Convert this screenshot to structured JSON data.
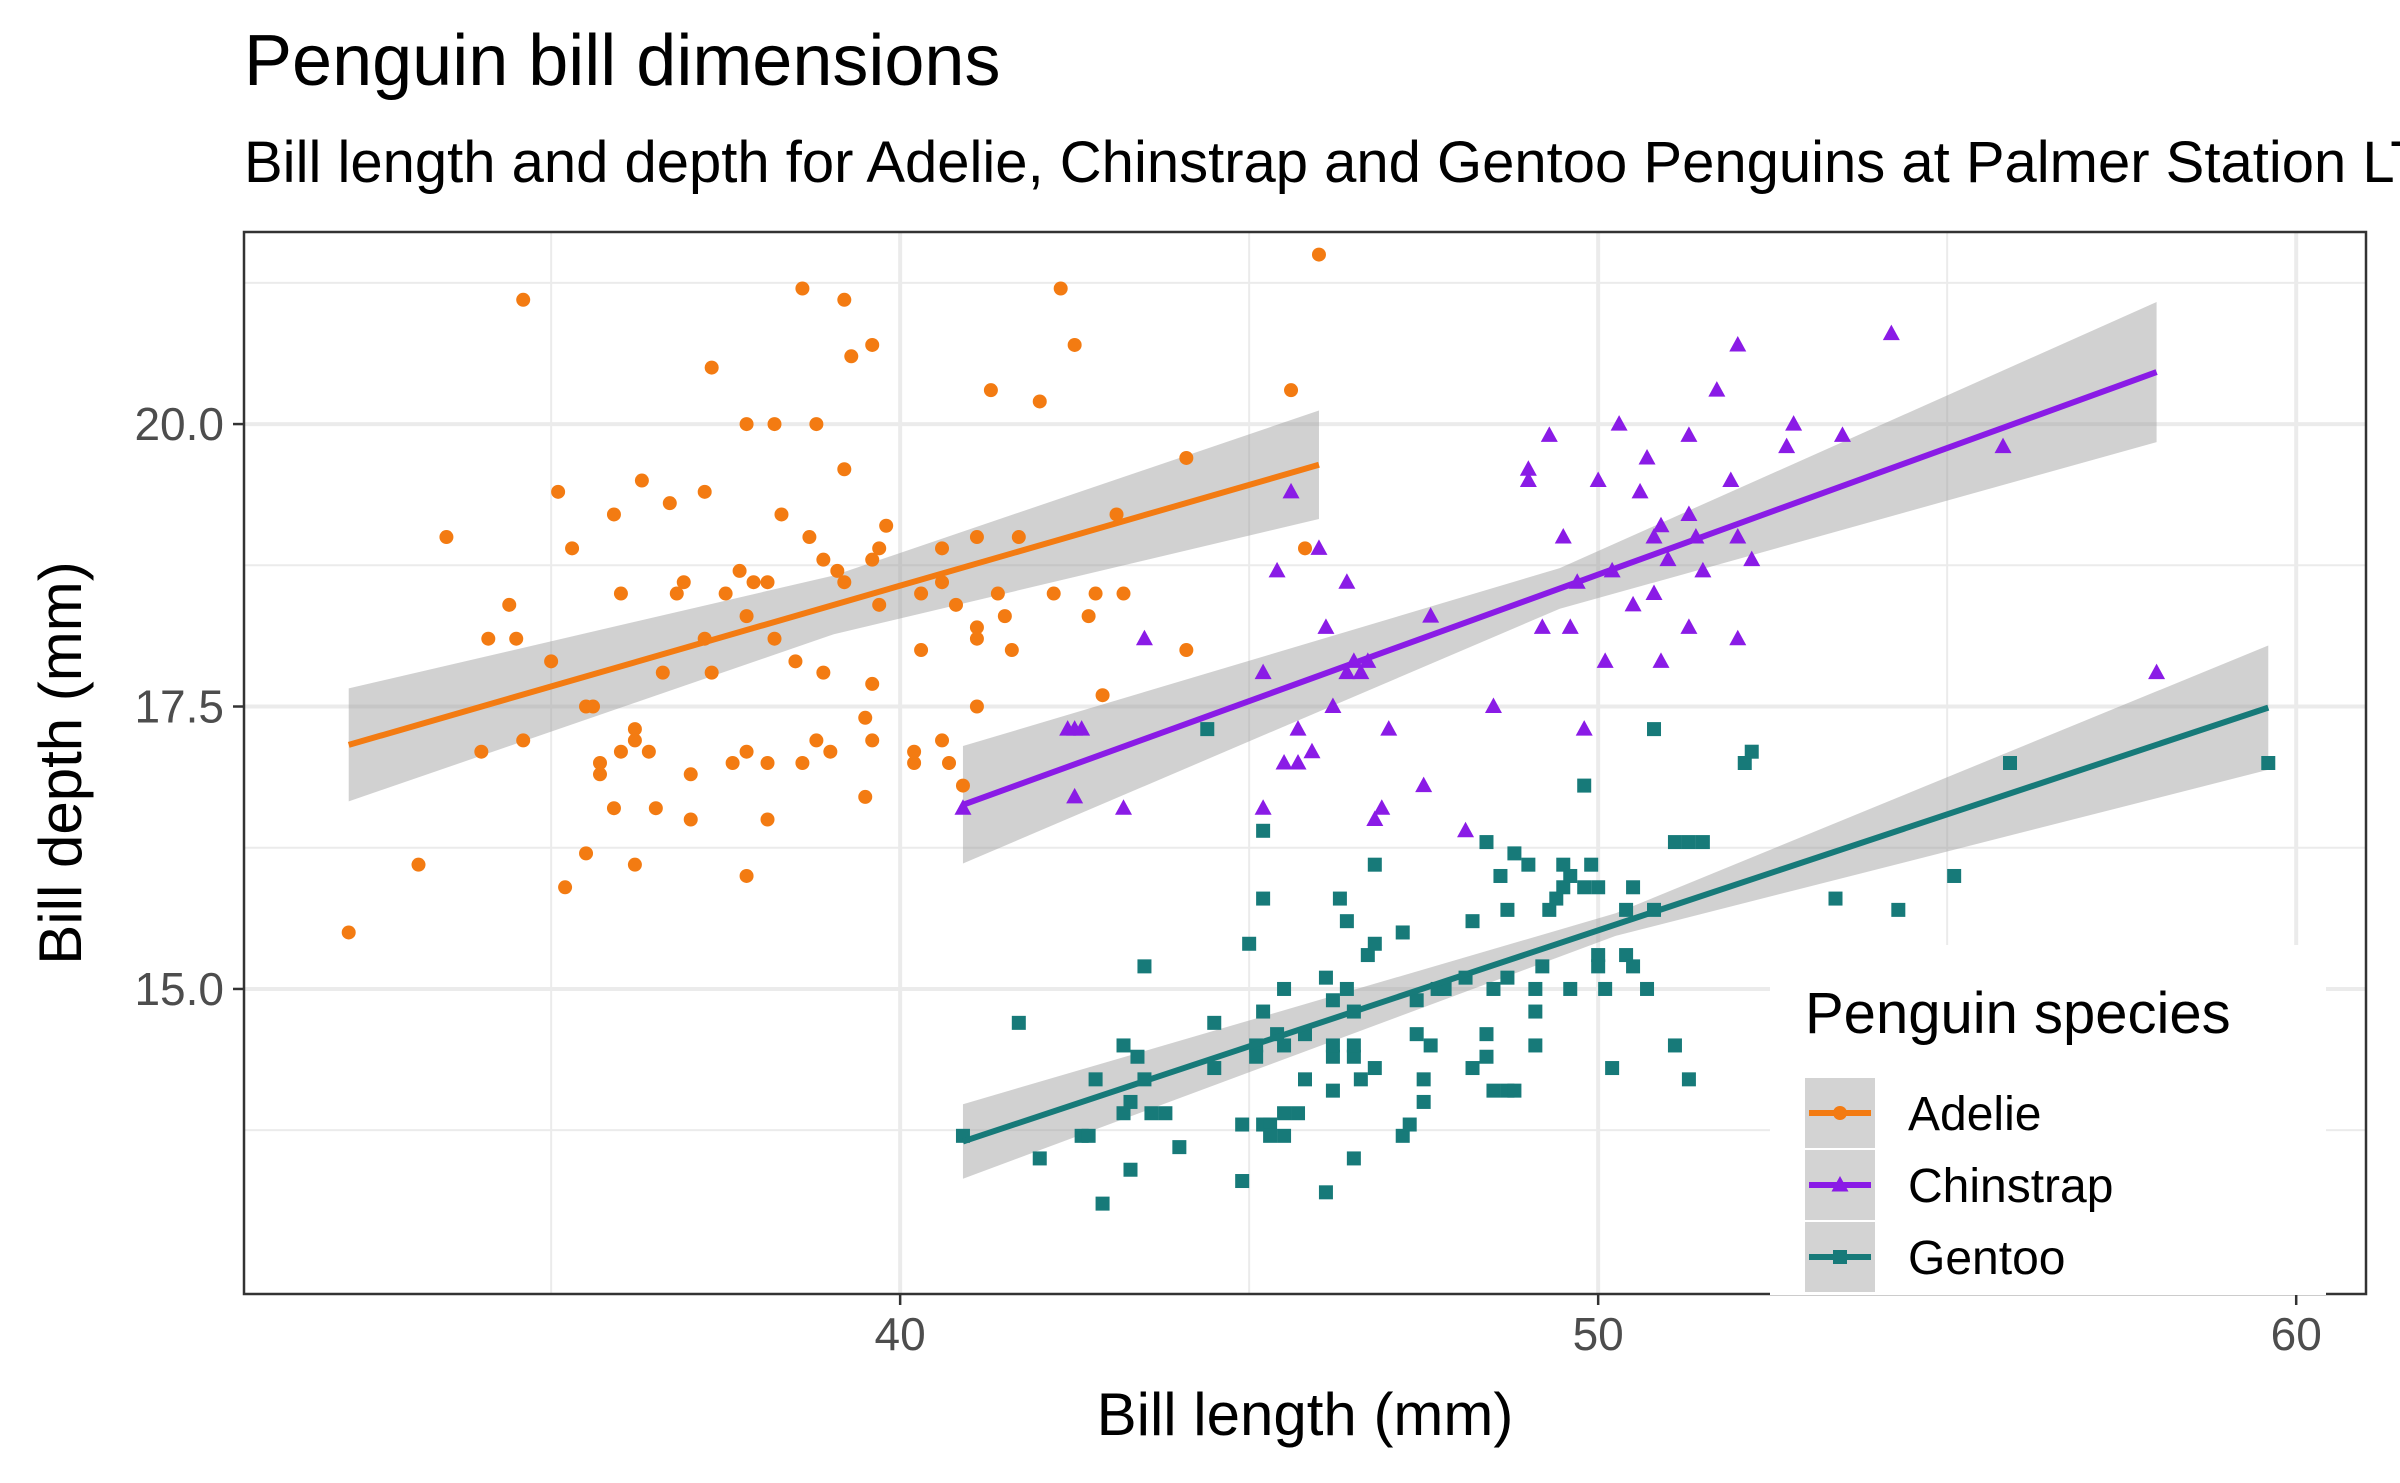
{
  "chart_data": {
    "type": "scatter",
    "title": "Penguin bill dimensions",
    "subtitle": "Bill length and depth for Adelie, Chinstrap and Gentoo Penguins at Palmer Station LTER",
    "xlabel": "Bill length (mm)",
    "ylabel": "Bill depth (mm)",
    "xlim": [
      30.6,
      61.0
    ],
    "ylim": [
      12.3,
      21.7
    ],
    "x_ticks": [
      40,
      50,
      60
    ],
    "x_tick_labels": [
      "40",
      "50",
      "60"
    ],
    "y_ticks": [
      15.0,
      17.5,
      20.0
    ],
    "y_tick_labels": [
      "15.0",
      "17.5",
      "20.0"
    ],
    "grid": true,
    "legend": {
      "title": "Penguin species",
      "position": "bottom-right, inside",
      "entries": [
        "Adelie",
        "Chinstrap",
        "Gentoo"
      ]
    },
    "series": [
      {
        "name": "Adelie",
        "color": "#f37b12",
        "marker": "circle",
        "points": [
          [
            32.1,
            15.5
          ],
          [
            33.1,
            16.1
          ],
          [
            33.5,
            19.0
          ],
          [
            34.0,
            17.1
          ],
          [
            34.1,
            18.1
          ],
          [
            34.4,
            18.4
          ],
          [
            34.5,
            18.1
          ],
          [
            34.6,
            17.2
          ],
          [
            34.6,
            21.1
          ],
          [
            35.0,
            17.9
          ],
          [
            35.1,
            19.4
          ],
          [
            35.2,
            15.9
          ],
          [
            35.3,
            18.9
          ],
          [
            35.5,
            16.2
          ],
          [
            35.5,
            17.5
          ],
          [
            35.6,
            17.5
          ],
          [
            35.7,
            16.9
          ],
          [
            35.7,
            17.0
          ],
          [
            35.9,
            16.6
          ],
          [
            35.9,
            19.2
          ],
          [
            36.0,
            17.1
          ],
          [
            36.0,
            18.5
          ],
          [
            36.2,
            16.1
          ],
          [
            36.2,
            17.2
          ],
          [
            36.2,
            17.3
          ],
          [
            36.3,
            19.5
          ],
          [
            36.4,
            17.1
          ],
          [
            36.5,
            16.6
          ],
          [
            36.6,
            17.8
          ],
          [
            36.7,
            19.3
          ],
          [
            36.8,
            18.5
          ],
          [
            36.9,
            18.6
          ],
          [
            37.0,
            16.9
          ],
          [
            37.0,
            16.5
          ],
          [
            37.2,
            18.1
          ],
          [
            37.2,
            19.4
          ],
          [
            37.3,
            17.8
          ],
          [
            37.3,
            20.5
          ],
          [
            37.5,
            18.5
          ],
          [
            37.6,
            17.0
          ],
          [
            37.7,
            18.7
          ],
          [
            37.8,
            16.0
          ],
          [
            37.8,
            17.1
          ],
          [
            37.8,
            18.3
          ],
          [
            37.8,
            20.0
          ],
          [
            37.9,
            18.6
          ],
          [
            38.1,
            18.6
          ],
          [
            38.1,
            16.5
          ],
          [
            38.1,
            17.0
          ],
          [
            38.2,
            18.1
          ],
          [
            38.2,
            20.0
          ],
          [
            38.3,
            19.2
          ],
          [
            38.5,
            17.9
          ],
          [
            38.6,
            17.0
          ],
          [
            38.6,
            21.2
          ],
          [
            38.7,
            19.0
          ],
          [
            38.8,
            17.2
          ],
          [
            38.8,
            20.0
          ],
          [
            38.9,
            17.8
          ],
          [
            38.9,
            18.8
          ],
          [
            39.0,
            17.1
          ],
          [
            39.1,
            18.7
          ],
          [
            39.2,
            18.6
          ],
          [
            39.2,
            19.6
          ],
          [
            39.2,
            21.1
          ],
          [
            39.3,
            20.6
          ],
          [
            39.5,
            16.7
          ],
          [
            39.5,
            17.4
          ],
          [
            39.6,
            17.2
          ],
          [
            39.6,
            17.7
          ],
          [
            39.6,
            18.8
          ],
          [
            39.6,
            20.7
          ],
          [
            39.7,
            18.4
          ],
          [
            39.7,
            18.9
          ],
          [
            39.8,
            19.1
          ],
          [
            40.2,
            17.0
          ],
          [
            40.2,
            17.1
          ],
          [
            40.3,
            18.0
          ],
          [
            40.3,
            18.5
          ],
          [
            40.6,
            17.2
          ],
          [
            40.6,
            18.6
          ],
          [
            40.6,
            18.9
          ],
          [
            40.7,
            17.0
          ],
          [
            40.8,
            18.4
          ],
          [
            40.9,
            16.8
          ],
          [
            41.1,
            17.5
          ],
          [
            41.1,
            18.1
          ],
          [
            41.1,
            18.2
          ],
          [
            41.1,
            19.0
          ],
          [
            41.3,
            20.3
          ],
          [
            41.4,
            18.5
          ],
          [
            41.5,
            18.3
          ],
          [
            41.6,
            18.0
          ],
          [
            41.7,
            19.0
          ],
          [
            42.0,
            20.2
          ],
          [
            42.2,
            18.5
          ],
          [
            42.3,
            21.2
          ],
          [
            42.5,
            20.7
          ],
          [
            42.7,
            18.3
          ],
          [
            42.8,
            18.5
          ],
          [
            42.9,
            17.6
          ],
          [
            43.1,
            19.2
          ],
          [
            43.2,
            18.5
          ],
          [
            44.1,
            18.0
          ],
          [
            44.1,
            19.7
          ],
          [
            45.6,
            20.3
          ],
          [
            45.8,
            18.9
          ],
          [
            46.0,
            21.5
          ]
        ]
      },
      {
        "name": "Chinstrap",
        "color": "#8a1be6",
        "marker": "triangle",
        "points": [
          [
            40.9,
            16.6
          ],
          [
            42.4,
            17.3
          ],
          [
            42.5,
            16.7
          ],
          [
            42.5,
            17.3
          ],
          [
            42.6,
            17.3
          ],
          [
            43.2,
            16.6
          ],
          [
            43.5,
            18.1
          ],
          [
            45.2,
            16.6
          ],
          [
            45.2,
            17.8
          ],
          [
            45.4,
            18.7
          ],
          [
            45.5,
            17.0
          ],
          [
            45.6,
            19.4
          ],
          [
            45.7,
            17.0
          ],
          [
            45.7,
            17.3
          ],
          [
            45.9,
            17.1
          ],
          [
            46.0,
            18.9
          ],
          [
            46.1,
            18.2
          ],
          [
            46.2,
            17.5
          ],
          [
            46.4,
            18.6
          ],
          [
            46.4,
            17.8
          ],
          [
            46.5,
            17.9
          ],
          [
            46.6,
            17.8
          ],
          [
            46.7,
            17.9
          ],
          [
            46.8,
            16.5
          ],
          [
            46.9,
            16.6
          ],
          [
            47.0,
            17.3
          ],
          [
            47.5,
            16.8
          ],
          [
            47.6,
            18.3
          ],
          [
            48.1,
            16.4
          ],
          [
            48.5,
            17.5
          ],
          [
            49.0,
            19.5
          ],
          [
            49.0,
            19.6
          ],
          [
            49.2,
            18.2
          ],
          [
            49.3,
            19.9
          ],
          [
            49.5,
            19.0
          ],
          [
            49.6,
            18.2
          ],
          [
            49.7,
            18.6
          ],
          [
            49.8,
            17.3
          ],
          [
            50.0,
            19.5
          ],
          [
            50.1,
            17.9
          ],
          [
            50.2,
            18.7
          ],
          [
            50.3,
            20.0
          ],
          [
            50.5,
            18.4
          ],
          [
            50.6,
            19.4
          ],
          [
            50.7,
            19.7
          ],
          [
            50.8,
            18.5
          ],
          [
            50.8,
            19.0
          ],
          [
            50.9,
            17.9
          ],
          [
            50.9,
            19.1
          ],
          [
            51.0,
            18.8
          ],
          [
            51.3,
            18.2
          ],
          [
            51.3,
            19.2
          ],
          [
            51.3,
            19.9
          ],
          [
            51.4,
            19.0
          ],
          [
            51.5,
            18.7
          ],
          [
            51.7,
            20.3
          ],
          [
            51.9,
            19.5
          ],
          [
            52.0,
            18.1
          ],
          [
            52.0,
            19.0
          ],
          [
            52.0,
            20.7
          ],
          [
            52.2,
            18.8
          ],
          [
            52.7,
            19.8
          ],
          [
            52.8,
            20.0
          ],
          [
            53.5,
            19.9
          ],
          [
            54.2,
            20.8
          ],
          [
            55.8,
            19.8
          ],
          [
            58.0,
            17.8
          ]
        ]
      },
      {
        "name": "Gentoo",
        "color": "#177a79",
        "marker": "square",
        "points": [
          [
            40.9,
            13.7
          ],
          [
            41.7,
            14.7
          ],
          [
            42.0,
            13.5
          ],
          [
            42.6,
            13.7
          ],
          [
            42.7,
            13.7
          ],
          [
            42.8,
            14.2
          ],
          [
            42.9,
            13.1
          ],
          [
            43.2,
            14.5
          ],
          [
            43.2,
            13.9
          ],
          [
            43.3,
            13.4
          ],
          [
            43.3,
            14.0
          ],
          [
            43.4,
            14.4
          ],
          [
            43.5,
            14.2
          ],
          [
            43.5,
            15.2
          ],
          [
            43.6,
            13.9
          ],
          [
            43.8,
            13.9
          ],
          [
            44.0,
            13.6
          ],
          [
            44.4,
            17.3
          ],
          [
            44.5,
            14.3
          ],
          [
            44.5,
            14.7
          ],
          [
            44.9,
            13.3
          ],
          [
            44.9,
            13.8
          ],
          [
            45.0,
            15.4
          ],
          [
            45.1,
            14.5
          ],
          [
            45.1,
            14.4
          ],
          [
            45.2,
            13.8
          ],
          [
            45.2,
            14.8
          ],
          [
            45.2,
            15.8
          ],
          [
            45.2,
            16.4
          ],
          [
            45.3,
            13.8
          ],
          [
            45.3,
            13.7
          ],
          [
            45.4,
            14.6
          ],
          [
            45.5,
            13.7
          ],
          [
            45.5,
            13.9
          ],
          [
            45.5,
            14.5
          ],
          [
            45.5,
            15.0
          ],
          [
            45.7,
            13.9
          ],
          [
            45.8,
            14.2
          ],
          [
            45.8,
            14.6
          ],
          [
            46.1,
            13.2
          ],
          [
            46.1,
            15.1
          ],
          [
            46.2,
            14.1
          ],
          [
            46.2,
            14.4
          ],
          [
            46.2,
            14.5
          ],
          [
            46.2,
            14.9
          ],
          [
            46.3,
            15.8
          ],
          [
            46.4,
            15.0
          ],
          [
            46.4,
            15.6
          ],
          [
            46.5,
            13.5
          ],
          [
            46.5,
            14.4
          ],
          [
            46.5,
            14.5
          ],
          [
            46.5,
            14.8
          ],
          [
            46.6,
            14.2
          ],
          [
            46.7,
            15.3
          ],
          [
            46.8,
            14.3
          ],
          [
            46.8,
            15.4
          ],
          [
            46.8,
            16.1
          ],
          [
            47.2,
            13.7
          ],
          [
            47.2,
            15.5
          ],
          [
            47.3,
            13.8
          ],
          [
            47.4,
            14.6
          ],
          [
            47.4,
            14.9
          ],
          [
            47.5,
            14.0
          ],
          [
            47.5,
            14.2
          ],
          [
            47.6,
            14.5
          ],
          [
            47.7,
            15.0
          ],
          [
            47.8,
            15.0
          ],
          [
            48.1,
            15.1
          ],
          [
            48.2,
            14.3
          ],
          [
            48.2,
            15.6
          ],
          [
            48.4,
            14.4
          ],
          [
            48.4,
            14.6
          ],
          [
            48.4,
            16.3
          ],
          [
            48.5,
            14.1
          ],
          [
            48.5,
            15.0
          ],
          [
            48.6,
            16.0
          ],
          [
            48.7,
            14.1
          ],
          [
            48.7,
            15.1
          ],
          [
            48.7,
            15.7
          ],
          [
            48.8,
            14.1
          ],
          [
            48.8,
            16.2
          ],
          [
            49.0,
            16.1
          ],
          [
            49.1,
            14.5
          ],
          [
            49.1,
            14.8
          ],
          [
            49.1,
            15.0
          ],
          [
            49.2,
            15.2
          ],
          [
            49.3,
            15.7
          ],
          [
            49.4,
            15.8
          ],
          [
            49.5,
            15.9
          ],
          [
            49.5,
            16.1
          ],
          [
            49.6,
            15.0
          ],
          [
            49.6,
            16.0
          ],
          [
            49.8,
            15.9
          ],
          [
            49.8,
            16.8
          ],
          [
            49.9,
            16.1
          ],
          [
            50.0,
            15.2
          ],
          [
            50.0,
            15.3
          ],
          [
            50.0,
            15.9
          ],
          [
            50.1,
            15.0
          ],
          [
            50.2,
            14.3
          ],
          [
            50.4,
            15.3
          ],
          [
            50.4,
            15.7
          ],
          [
            50.5,
            15.2
          ],
          [
            50.5,
            15.9
          ],
          [
            50.7,
            15.0
          ],
          [
            50.8,
            15.7
          ],
          [
            50.8,
            17.3
          ],
          [
            51.1,
            14.5
          ],
          [
            51.1,
            16.3
          ],
          [
            51.3,
            14.2
          ],
          [
            51.3,
            16.3
          ],
          [
            51.5,
            16.3
          ],
          [
            52.1,
            17.0
          ],
          [
            52.2,
            17.1
          ],
          [
            53.4,
            15.8
          ],
          [
            54.3,
            15.7
          ],
          [
            55.1,
            16.0
          ],
          [
            55.9,
            17.0
          ],
          [
            59.6,
            17.0
          ]
        ]
      }
    ],
    "regression_lines": [
      {
        "name": "Adelie",
        "x": [
          32.1,
          46.0
        ],
        "y": [
          17.16,
          19.64
        ],
        "ci_halfwidth": [
          0.5,
          0.26,
          0.48
        ]
      },
      {
        "name": "Chinstrap",
        "x": [
          40.9,
          58.0
        ],
        "y": [
          16.63,
          20.46
        ],
        "ci_halfwidth": [
          0.52,
          0.18,
          0.62
        ]
      },
      {
        "name": "Gentoo",
        "x": [
          40.9,
          59.6
        ],
        "y": [
          13.65,
          17.49
        ],
        "ci_halfwidth": [
          0.33,
          0.1,
          0.55
        ]
      }
    ]
  }
}
